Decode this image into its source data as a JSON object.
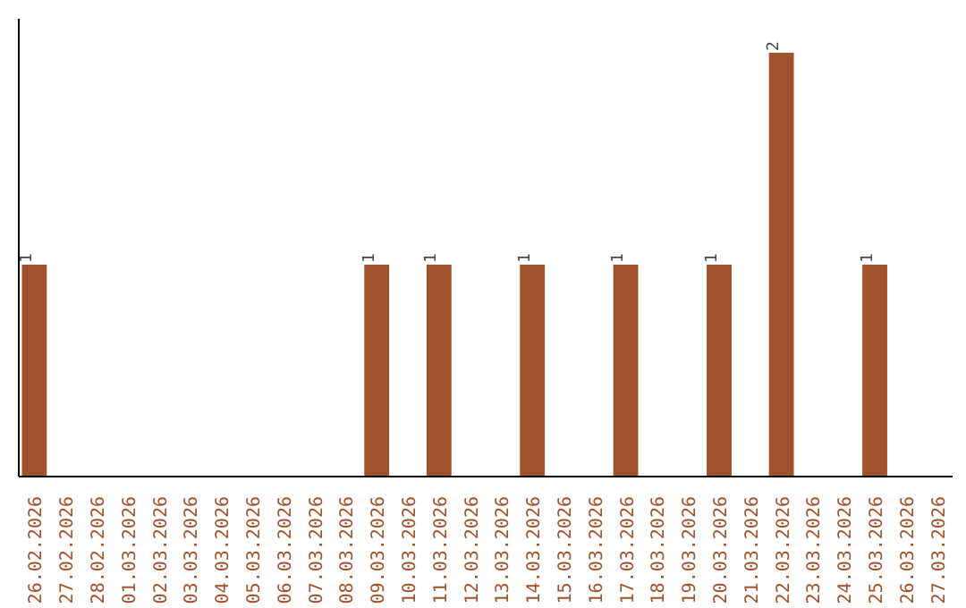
{
  "chart_data": {
    "type": "bar",
    "categories": [
      "26.02.2026",
      "27.02.2026",
      "28.02.2026",
      "01.03.2026",
      "02.03.2026",
      "03.03.2026",
      "04.03.2026",
      "05.03.2026",
      "06.03.2026",
      "07.03.2026",
      "08.03.2026",
      "09.03.2026",
      "10.03.2026",
      "11.03.2026",
      "12.03.2026",
      "13.03.2026",
      "14.03.2026",
      "15.03.2026",
      "16.03.2026",
      "17.03.2026",
      "18.03.2026",
      "19.03.2026",
      "20.03.2026",
      "21.03.2026",
      "22.03.2026",
      "23.03.2026",
      "24.03.2026",
      "25.03.2026",
      "26.03.2026",
      "27.03.2026"
    ],
    "values": [
      1,
      0,
      0,
      0,
      0,
      0,
      0,
      0,
      0,
      0,
      0,
      1,
      0,
      1,
      0,
      0,
      1,
      0,
      0,
      1,
      0,
      0,
      1,
      0,
      2,
      0,
      0,
      1,
      0,
      0
    ],
    "value_labels": [
      "1",
      null,
      null,
      null,
      null,
      null,
      null,
      null,
      null,
      null,
      null,
      "1",
      null,
      "1",
      null,
      null,
      "1",
      null,
      null,
      "1",
      null,
      null,
      "1",
      null,
      "2",
      null,
      null,
      "1",
      null,
      null
    ],
    "color": "#a0522d",
    "grid": false
  }
}
